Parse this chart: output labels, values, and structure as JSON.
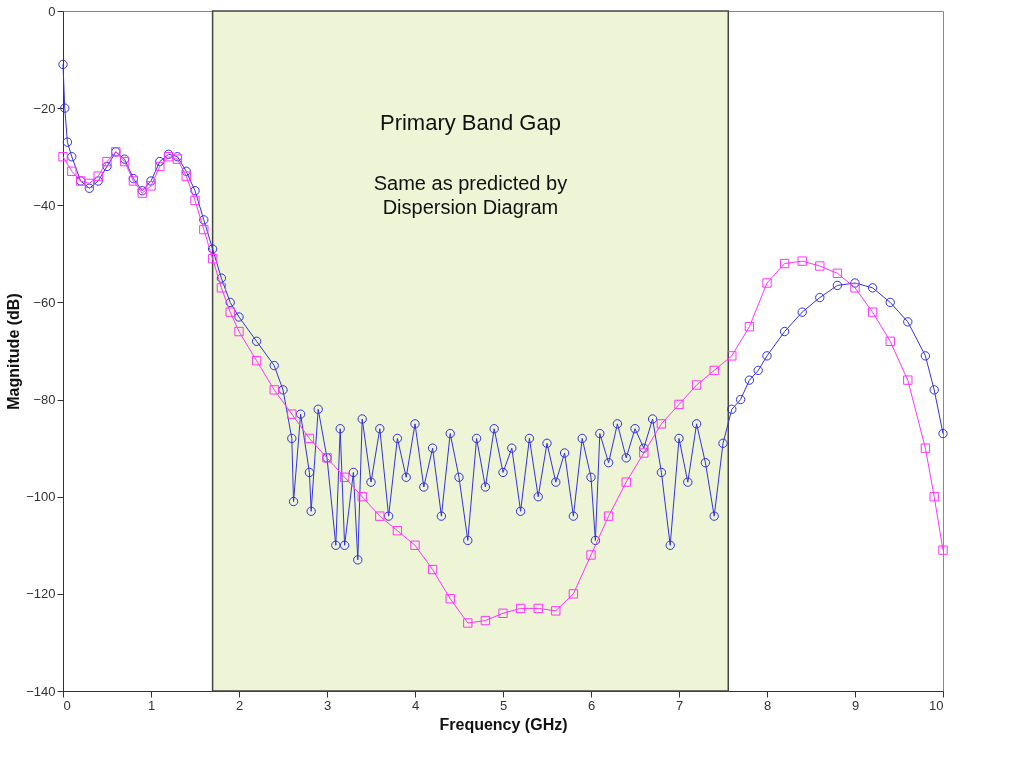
{
  "chart_data": {
    "type": "line",
    "xlabel": "Frequency (GHz)",
    "ylabel": "Magnitude (dB)",
    "xlim": [
      0,
      10
    ],
    "xticks": [
      0,
      1,
      2,
      3,
      4,
      5,
      6,
      7,
      8,
      9,
      10
    ],
    "ylim": [
      -140,
      0
    ],
    "yticks": [
      -140,
      -120,
      -100,
      -80,
      -60,
      -40,
      -20,
      0
    ],
    "grid": false,
    "line_style": "solid",
    "bands": [
      {
        "axis": "x",
        "from": 1.7,
        "to": 7.56,
        "label": "Primary Band Gap",
        "color": "#eef4d6"
      }
    ],
    "annotations": [
      "Same as predicted by Dispersion Diagram"
    ],
    "series": [
      {
        "color": "#3333dd",
        "marker": "circle",
        "x": [
          0.0,
          0.02,
          0.05,
          0.1,
          0.2,
          0.3,
          0.4,
          0.5,
          0.6,
          0.7,
          0.8,
          0.9,
          1.0,
          1.1,
          1.2,
          1.3,
          1.4,
          1.5,
          1.6,
          1.7,
          1.8,
          1.9,
          2.0,
          2.2,
          2.4,
          2.5,
          2.6,
          2.62,
          2.7,
          2.8,
          2.82,
          2.9,
          3.0,
          3.1,
          3.15,
          3.2,
          3.3,
          3.35,
          3.4,
          3.5,
          3.6,
          3.7,
          3.8,
          3.9,
          4.0,
          4.1,
          4.2,
          4.3,
          4.4,
          4.5,
          4.6,
          4.7,
          4.8,
          4.9,
          5.0,
          5.1,
          5.2,
          5.3,
          5.4,
          5.5,
          5.6,
          5.7,
          5.8,
          5.9,
          6.0,
          6.05,
          6.1,
          6.2,
          6.3,
          6.4,
          6.5,
          6.6,
          6.7,
          6.8,
          6.9,
          7.0,
          7.1,
          7.2,
          7.3,
          7.4,
          7.5,
          7.6,
          7.7,
          7.8,
          7.9,
          8.0,
          8.2,
          8.4,
          8.6,
          8.8,
          9.0,
          9.2,
          9.4,
          9.6,
          9.8,
          9.9,
          10.0
        ],
        "values": [
          -11,
          -20,
          -27,
          -30,
          -35,
          -36.5,
          -35,
          -32,
          -29,
          -30.5,
          -34.5,
          -37,
          -35,
          -31,
          -29.5,
          -30,
          -33,
          -37,
          -43,
          -49,
          -55,
          -60,
          -63,
          -68,
          -73,
          -78,
          -88,
          -101,
          -83,
          -95,
          -103,
          -82,
          -92,
          -110,
          -86,
          -110,
          -95,
          -113,
          -84,
          -97,
          -86,
          -104,
          -88,
          -96,
          -85,
          -98,
          -90,
          -104,
          -87,
          -96,
          -109,
          -88,
          -98,
          -86,
          -95,
          -90,
          -103,
          -88,
          -100,
          -89,
          -97,
          -91,
          -104,
          -88,
          -96,
          -109,
          -87,
          -93,
          -85,
          -92,
          -86,
          -90,
          -84,
          -95,
          -110,
          -88,
          -97,
          -85,
          -93,
          -104,
          -89,
          -82,
          -80,
          -76,
          -74,
          -71,
          -66,
          -62,
          -59,
          -56.5,
          -56,
          -57,
          -60,
          -64,
          -71,
          -78,
          -87
        ]
      },
      {
        "color": "#ff33ff",
        "marker": "square",
        "x": [
          0.0,
          0.1,
          0.2,
          0.3,
          0.4,
          0.5,
          0.6,
          0.7,
          0.8,
          0.9,
          1.0,
          1.1,
          1.2,
          1.3,
          1.4,
          1.5,
          1.6,
          1.7,
          1.8,
          1.9,
          2.0,
          2.2,
          2.4,
          2.6,
          2.8,
          3.0,
          3.2,
          3.4,
          3.6,
          3.8,
          4.0,
          4.2,
          4.4,
          4.6,
          4.8,
          5.0,
          5.2,
          5.4,
          5.6,
          5.8,
          6.0,
          6.2,
          6.4,
          6.6,
          6.8,
          7.0,
          7.2,
          7.4,
          7.6,
          7.8,
          8.0,
          8.2,
          8.4,
          8.6,
          8.8,
          9.0,
          9.2,
          9.4,
          9.6,
          9.8,
          9.9,
          10.0
        ],
        "values": [
          -30,
          -33,
          -35,
          -35.5,
          -34,
          -31,
          -29,
          -31,
          -35,
          -37.5,
          -36,
          -32,
          -30,
          -30.5,
          -34,
          -39,
          -45,
          -51,
          -57,
          -62,
          -66,
          -72,
          -78,
          -83,
          -88,
          -92,
          -96,
          -100,
          -104,
          -107,
          -110,
          -115,
          -121,
          -126,
          -125.5,
          -124,
          -123,
          -123,
          -123.5,
          -120,
          -112,
          -104,
          -97,
          -91,
          -85,
          -81,
          -77,
          -74,
          -71,
          -65,
          -56,
          -52,
          -51.5,
          -52.5,
          -54,
          -57,
          -62,
          -68,
          -76,
          -90,
          -100,
          -111
        ]
      }
    ]
  }
}
